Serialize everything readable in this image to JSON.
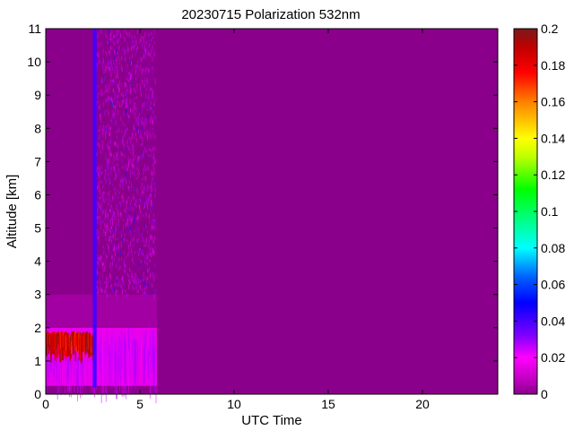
{
  "chart_data": {
    "type": "heatmap",
    "title": "20230715 Polarization 532nm",
    "xlabel": "UTC Time",
    "ylabel": "Altitude [km]",
    "xlim": [
      0,
      24
    ],
    "ylim": [
      0,
      11
    ],
    "x_ticks": [
      0,
      5,
      10,
      15,
      20
    ],
    "y_ticks": [
      0,
      1,
      2,
      3,
      4,
      5,
      6,
      7,
      8,
      9,
      10,
      11
    ],
    "colorbar": {
      "min": 0,
      "max": 0.2,
      "ticks": [
        0,
        0.02,
        0.04,
        0.06,
        0.08,
        0.1,
        0.12,
        0.14,
        0.16,
        0.18,
        0.2
      ],
      "colormap": "jet-like rainbow (magenta-purple at 0, blue, cyan, green, yellow, orange, red, dark red at 0.2)"
    },
    "background_value": 0.005,
    "background_color": "#8b008b",
    "regions": [
      {
        "name": "surface layer",
        "x": [
          0,
          5.9
        ],
        "y": [
          0.25,
          2.0
        ],
        "value": 0.016
      },
      {
        "name": "elevated aerosol layer top",
        "x": [
          0,
          2.5
        ],
        "y": [
          1.1,
          1.9
        ],
        "value": 0.19
      },
      {
        "name": "residual layer",
        "x": [
          0,
          5.9
        ],
        "y": [
          2.0,
          3.0
        ],
        "value": 0.006
      },
      {
        "name": "upper noise region",
        "x": [
          2.6,
          5.8
        ],
        "y": [
          3.0,
          11.0
        ],
        "value": 0.012
      },
      {
        "name": "vertical streak",
        "x": [
          2.5,
          2.7
        ],
        "y": [
          0.2,
          11.0
        ],
        "value": 0.04
      }
    ]
  }
}
